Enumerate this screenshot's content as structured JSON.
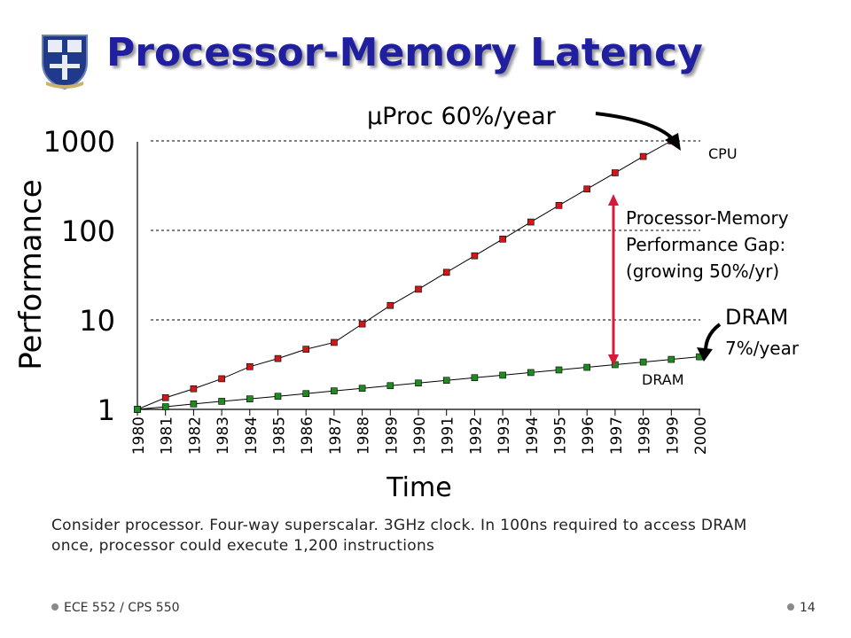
{
  "title": "Processor-Memory Latency",
  "note": "Consider processor. Four-way superscalar. 3GHz clock. In 100ns required to access DRAM once, processor could execute 1,200 instructions",
  "footer": {
    "course": "ECE 552 / CPS 550",
    "page": "14"
  },
  "colors": {
    "title": "#1f1fa0",
    "cpu": "#cc1a1a",
    "dram": "#1f8a1f",
    "gap_arrow": "#d81a3a"
  },
  "chart_data": {
    "type": "line",
    "ylabel": "Performance",
    "xlabel": "Time",
    "yscale": "log",
    "ylim": [
      1,
      1000
    ],
    "ytick_labels": [
      "1",
      "10",
      "100",
      "1000"
    ],
    "yticks": [
      1,
      10,
      100,
      1000
    ],
    "grid": "dashed horizontal at 10, 100, 1000",
    "x": [
      "1980",
      "1981",
      "1982",
      "1983",
      "1984",
      "1985",
      "1986",
      "1987",
      "1988",
      "1989",
      "1990",
      "1991",
      "1992",
      "1993",
      "1994",
      "1995",
      "1996",
      "1997",
      "1998",
      "1999",
      "2000"
    ],
    "series": [
      {
        "name": "CPU",
        "values": [
          1,
          1.35,
          1.7,
          2.2,
          3.0,
          3.7,
          4.7,
          5.6,
          9.0,
          14.5,
          22,
          34,
          52,
          80,
          124,
          190,
          290,
          440,
          670,
          1000,
          1000
        ]
      },
      {
        "name": "DRAM",
        "values": [
          1,
          1.07,
          1.15,
          1.23,
          1.31,
          1.4,
          1.5,
          1.61,
          1.72,
          1.84,
          1.97,
          2.11,
          2.26,
          2.41,
          2.58,
          2.76,
          2.95,
          3.16,
          3.38,
          3.62,
          3.87
        ]
      }
    ],
    "annotations": {
      "cpu_rate": "µProc 60%/year",
      "cpu_label": "CPU",
      "dram_rate_title": "DRAM",
      "dram_rate": "7%/year",
      "dram_label": "DRAM",
      "gap_line1": "Processor-Memory",
      "gap_line2": "Performance Gap:",
      "gap_line3": "(growing 50%/yr)"
    }
  }
}
